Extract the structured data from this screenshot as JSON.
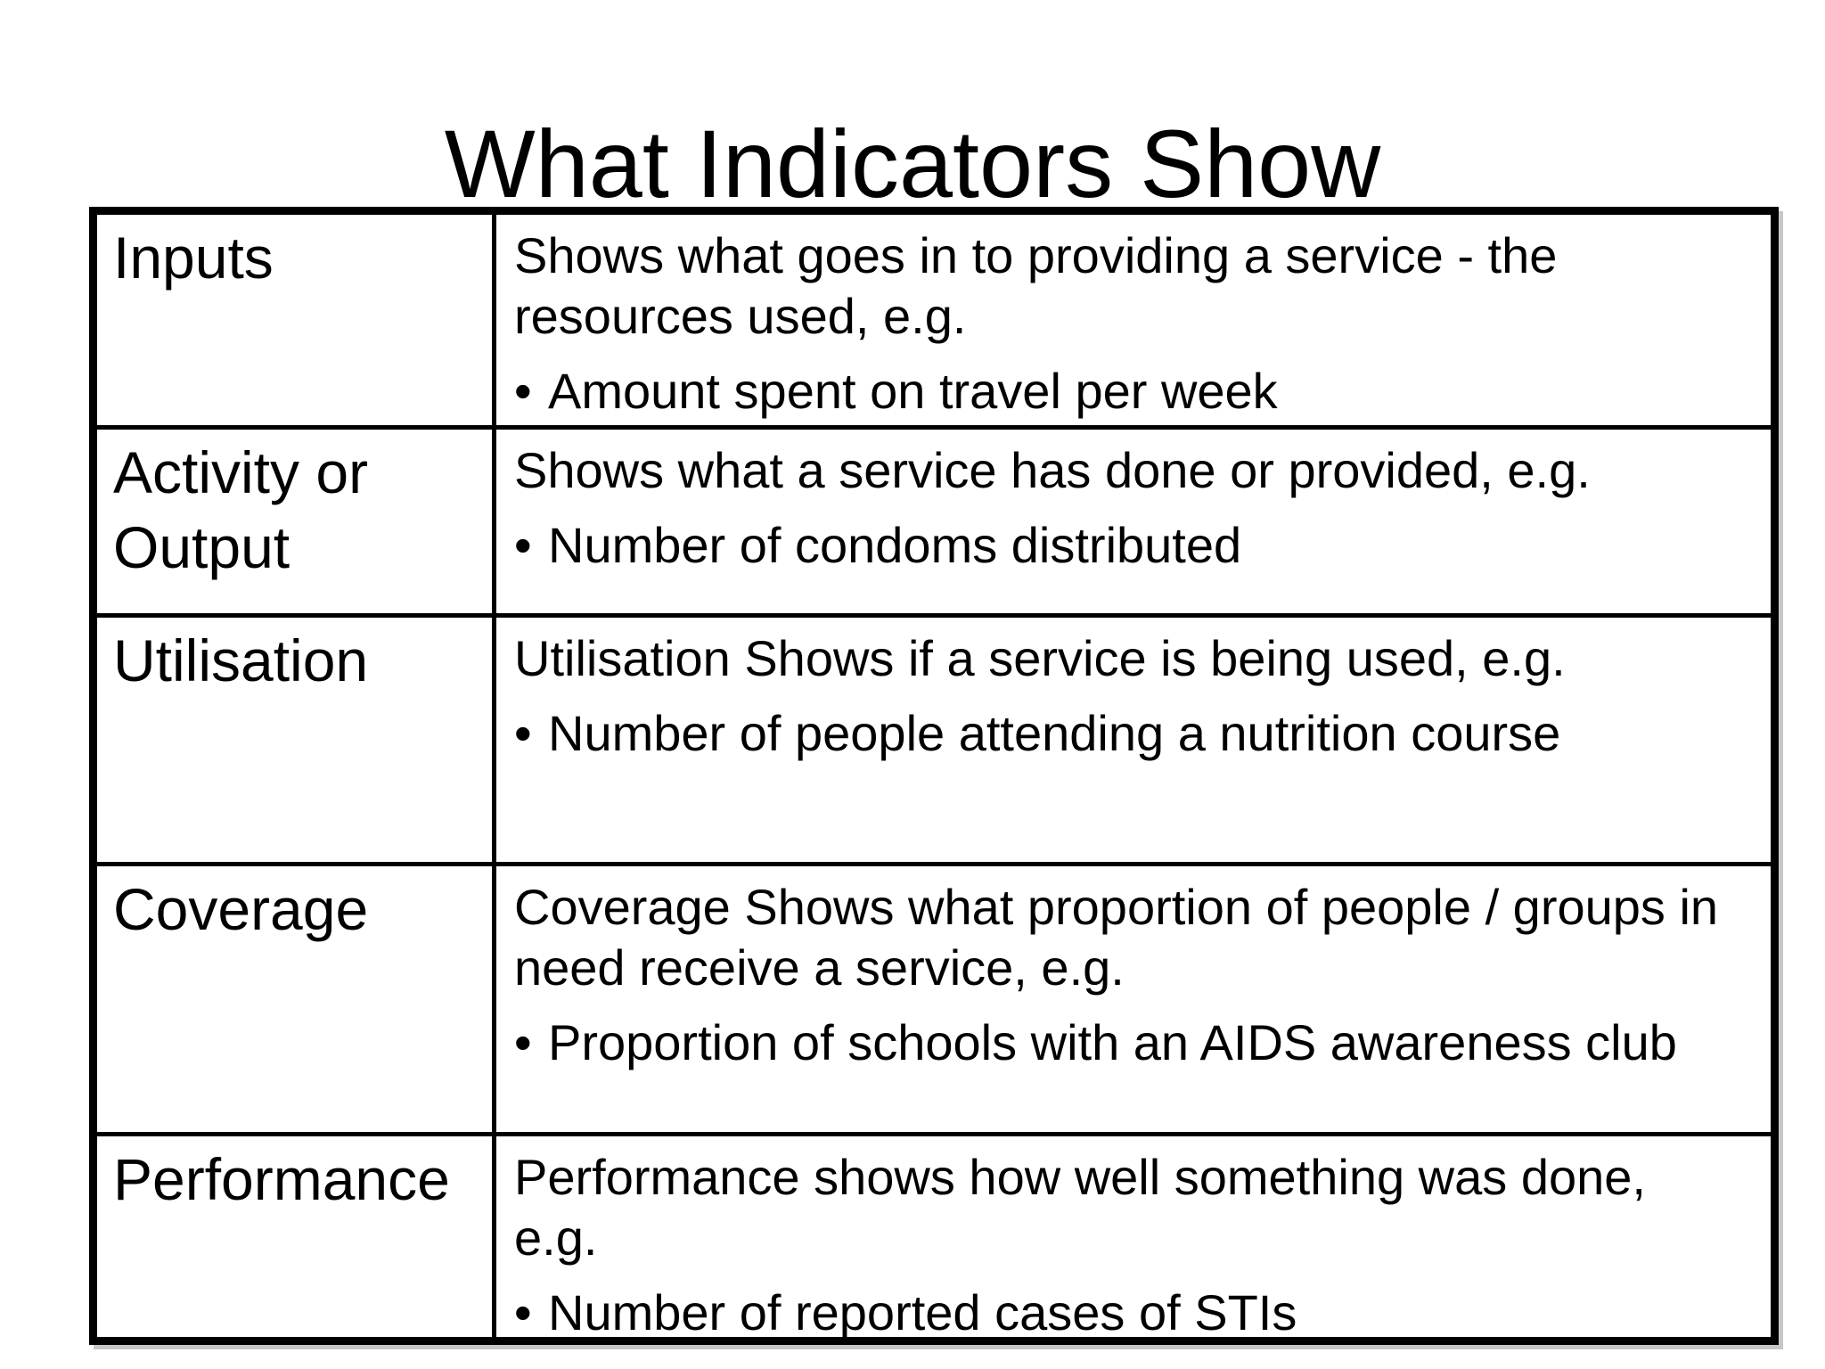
{
  "slide": {
    "title": "What Indicators Show",
    "colors": {
      "background": "#ffffff",
      "text": "#000000",
      "table_border": "#000000"
    },
    "bullet_char": "•"
  },
  "table": {
    "rows": [
      {
        "label_lines": [
          "Inputs"
        ],
        "intro_lines": [
          "Shows what goes in to providing a service - the",
          "resources used, e.g."
        ],
        "bullets": [
          "Amount spent on travel per week"
        ]
      },
      {
        "label_lines": [
          "Activity or",
          "Output"
        ],
        "intro_lines": [
          "Shows what a service has done or provided, e.g."
        ],
        "bullets": [
          "Number of condoms distributed"
        ]
      },
      {
        "label_lines": [
          "Utilisation"
        ],
        "intro_lines": [
          "Utilisation Shows if a service is being used, e.g."
        ],
        "bullets": [
          "Number of people attending a nutrition course"
        ]
      },
      {
        "label_lines": [
          "Coverage"
        ],
        "intro_lines": [
          "Coverage Shows what proportion of people / groups in",
          "need receive a service, e.g."
        ],
        "bullets": [
          "Proportion of schools with an AIDS awareness club"
        ]
      },
      {
        "label_lines": [
          "Performance"
        ],
        "intro_lines": [
          "Performance shows how well something was done,",
          "e.g."
        ],
        "bullets": [
          "Number of reported cases of STIs"
        ]
      }
    ]
  }
}
